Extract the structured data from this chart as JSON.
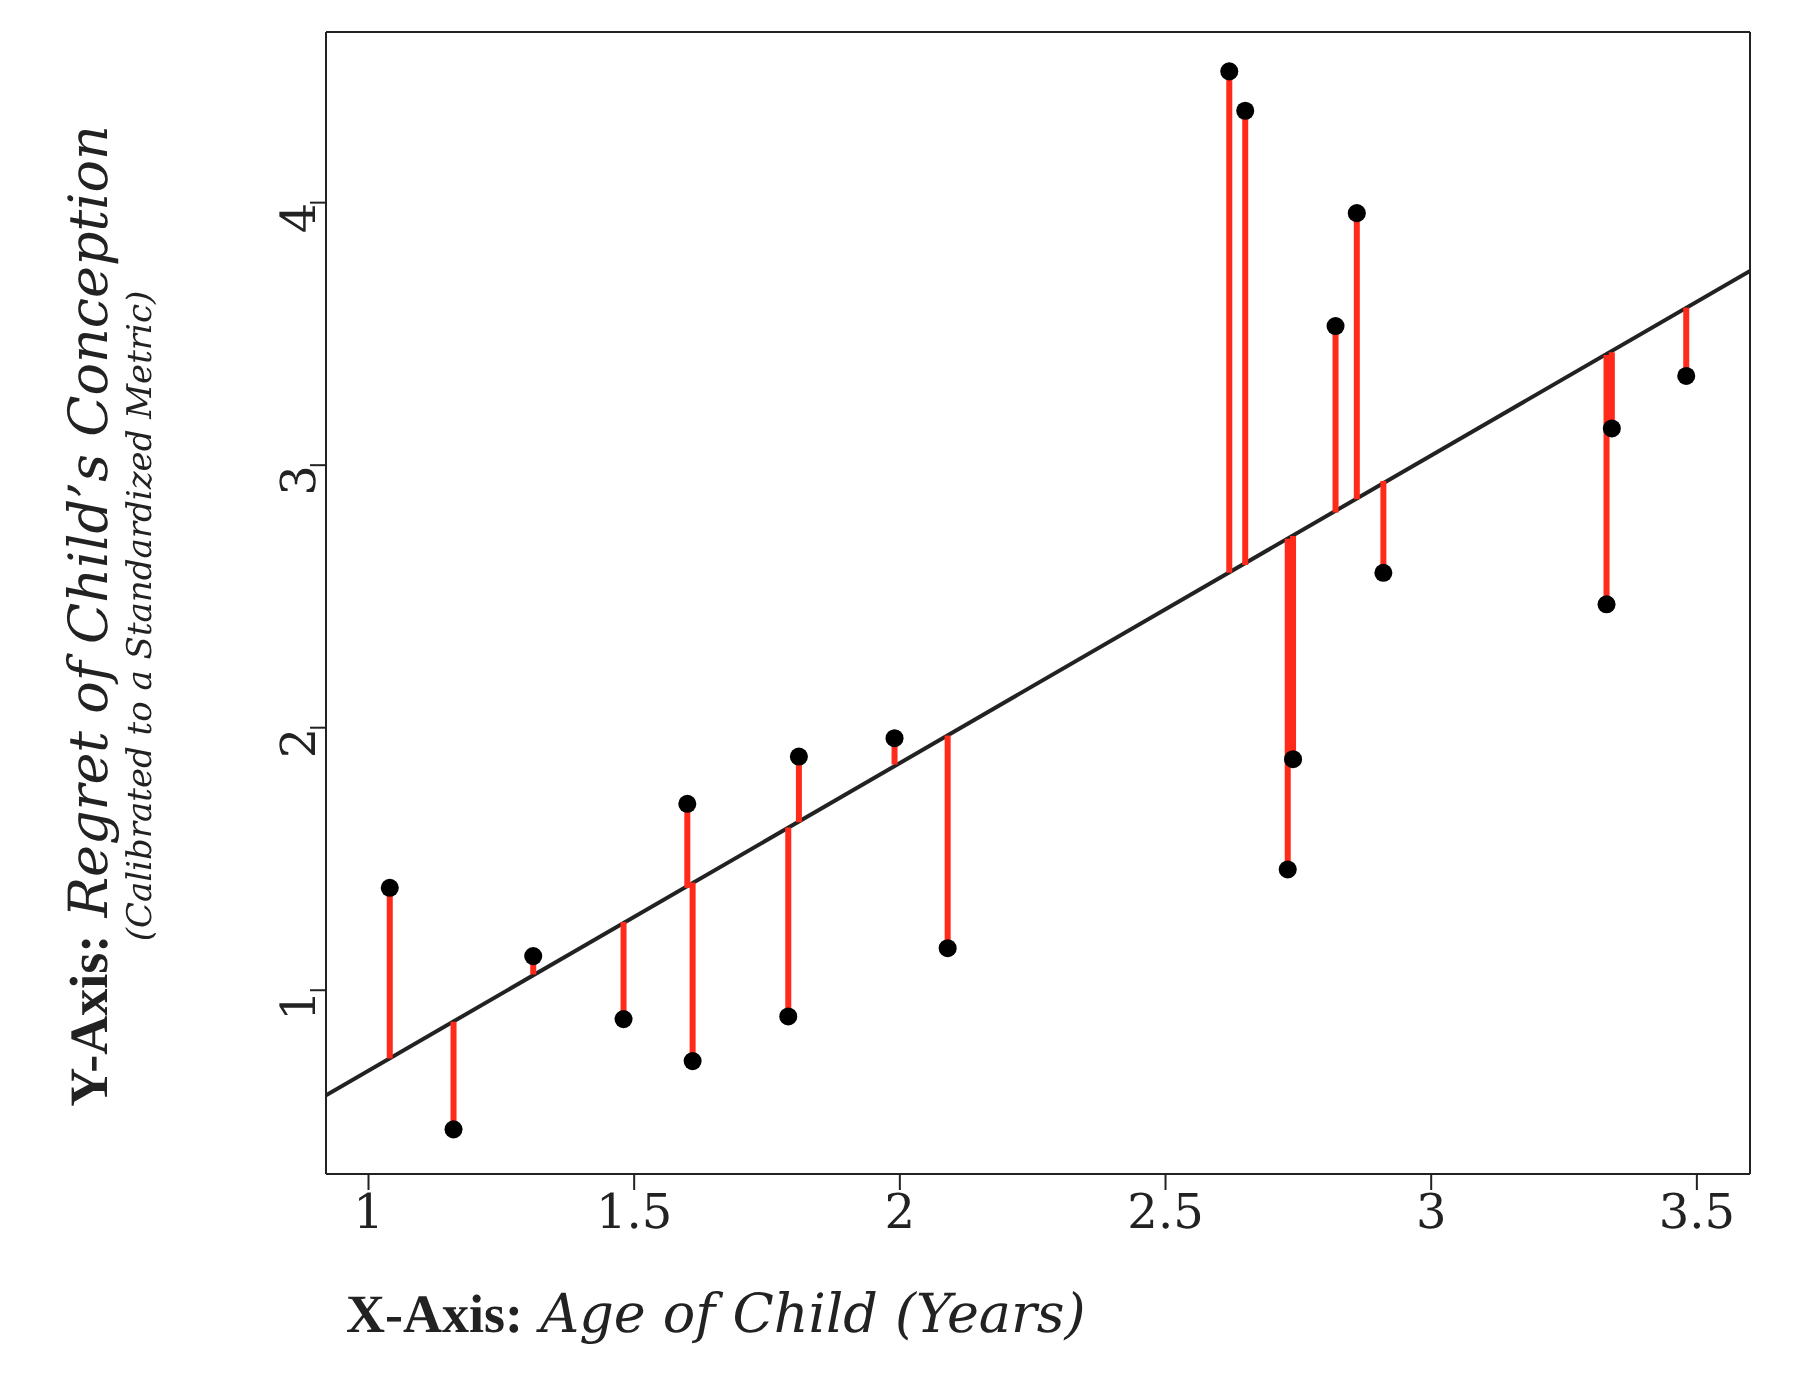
{
  "chart_data": {
    "type": "scatter",
    "xlabel": "X-Axis: Age of Child (Years)",
    "ylabel": "Y-Axis: Regret of Child’s Conception",
    "annotations": [
      "(Calibrated to a Standardized Metric)"
    ],
    "xlim": [
      0.92,
      3.6
    ],
    "ylim": [
      0.3,
      4.65
    ],
    "xticks": [
      1,
      1.5,
      2,
      2.5,
      3,
      3.5
    ],
    "yticks": [
      1,
      2,
      3,
      4
    ],
    "marker": "circle",
    "series": [
      {
        "color": "#000000",
        "x": [
          1.04,
          1.16,
          1.31,
          1.48,
          1.6,
          1.61,
          1.79,
          1.81,
          1.99,
          2.09,
          2.62,
          2.65,
          2.73,
          2.74,
          2.86,
          2.82,
          2.91,
          3.33,
          3.34,
          3.48
        ],
        "values": [
          1.39,
          0.47,
          1.13,
          0.89,
          1.71,
          0.73,
          0.9,
          1.89,
          1.96,
          1.16,
          4.5,
          4.35,
          1.46,
          1.88,
          3.96,
          3.53,
          2.59,
          2.47,
          3.14,
          3.34
        ],
        "errors": [
          [
            0.74,
            1.39
          ],
          [
            0.47,
            0.88
          ],
          [
            1.06,
            1.13
          ],
          [
            0.89,
            1.26
          ],
          [
            1.39,
            1.71
          ],
          [
            0.73,
            1.41
          ],
          [
            0.9,
            1.62
          ],
          [
            1.64,
            1.89
          ],
          [
            1.86,
            1.96
          ],
          [
            1.16,
            1.97
          ],
          [
            2.59,
            4.5
          ],
          [
            2.62,
            4.35
          ],
          [
            1.46,
            2.72
          ],
          [
            1.88,
            2.73
          ],
          [
            2.87,
            3.96
          ],
          [
            2.82,
            3.53
          ],
          [
            2.59,
            2.94
          ],
          [
            2.47,
            3.42
          ],
          [
            3.14,
            3.43
          ],
          [
            3.34,
            3.6
          ]
        ]
      },
      {
        "type": "line",
        "color": "#222222",
        "x": [
          0.92,
          3.6
        ],
        "values": [
          0.6,
          3.74
        ],
        "line_style": "solid",
        "marker": "none"
      }
    ]
  }
}
